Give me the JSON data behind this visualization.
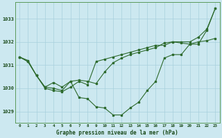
{
  "title": "Graphe pression niveau de la mer (hPa)",
  "background_color": "#cce8f0",
  "grid_color": "#a8d0dc",
  "line_color": "#2d6a2d",
  "text_color": "#1a4a1a",
  "x_labels": [
    "0",
    "1",
    "2",
    "3",
    "4",
    "5",
    "6",
    "7",
    "8",
    "9",
    "10",
    "11",
    "12",
    "13",
    "14",
    "15",
    "16",
    "17",
    "18",
    "19",
    "20",
    "21",
    "22",
    "23"
  ],
  "ylim": [
    1028.5,
    1033.7
  ],
  "yticks": [
    1029,
    1030,
    1031,
    1032,
    1033
  ],
  "series": [
    [
      1031.35,
      1031.2,
      1030.55,
      1030.0,
      1029.9,
      1029.85,
      1030.05,
      1030.3,
      1030.15,
      1031.15,
      1031.25,
      1031.35,
      1031.45,
      1031.55,
      1031.65,
      1031.75,
      1031.85,
      1031.85,
      1032.0,
      1032.0,
      1032.0,
      1032.2,
      1032.55,
      1033.45
    ],
    [
      1031.35,
      1031.15,
      1030.55,
      1030.05,
      1030.25,
      1030.05,
      1030.3,
      1029.6,
      1029.55,
      1029.2,
      1029.15,
      1028.85,
      1028.85,
      1029.15,
      1029.4,
      1029.9,
      1030.3,
      1031.3,
      1031.45,
      1031.45,
      1031.9,
      1031.9,
      1032.5,
      1033.45
    ],
    [
      1031.35,
      1031.15,
      1030.55,
      1030.05,
      1030.0,
      1029.9,
      1030.3,
      1030.35,
      1030.3,
      1030.2,
      1030.7,
      1031.1,
      1031.3,
      1031.45,
      1031.55,
      1031.65,
      1031.75,
      1031.95,
      1032.0,
      1031.95,
      1031.9,
      1032.0,
      1032.05,
      1032.15
    ]
  ]
}
